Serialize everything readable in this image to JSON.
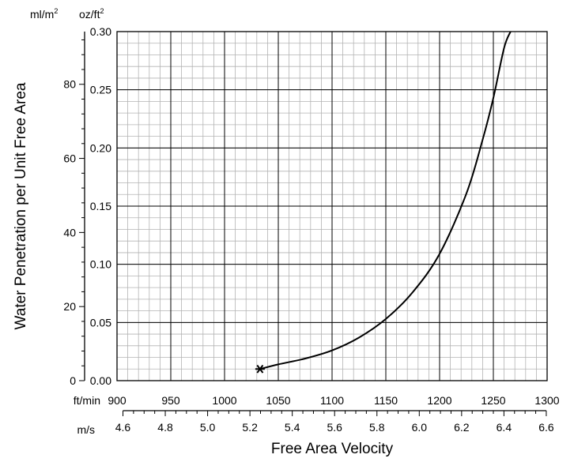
{
  "chart_data": {
    "type": "line",
    "xlabel": "Free Area Velocity",
    "ylabel": "Water Penetration per Unit Free Area",
    "x_units": {
      "primary": "ft/min",
      "secondary": "m/s"
    },
    "y_units": {
      "primary": {
        "base": "oz/ft",
        "exp": "2"
      },
      "secondary": {
        "base": "ml/m",
        "exp": "2"
      }
    },
    "xlim": [
      900,
      1300
    ],
    "ylim": [
      0,
      0.3
    ],
    "x_ticks": [
      900,
      950,
      1000,
      1050,
      1100,
      1150,
      1200,
      1250,
      1300
    ],
    "y_ticks": [
      0.0,
      0.05,
      0.1,
      0.15,
      0.2,
      0.25,
      0.3
    ],
    "y_tick_labels": [
      "0.00",
      "0.05",
      "0.10",
      "0.15",
      "0.20",
      "0.25",
      "0.30"
    ],
    "secondary_x_ticks": [
      4.6,
      4.8,
      5.0,
      5.2,
      5.4,
      5.6,
      5.8,
      6.0,
      6.2,
      6.4,
      6.6
    ],
    "secondary_x_tick_labels": [
      "4.6",
      "4.8",
      "5.0",
      "5.2",
      "5.4",
      "5.6",
      "5.8",
      "6.0",
      "6.2",
      "6.4",
      "6.6"
    ],
    "secondary_y_ticks": [
      0,
      20,
      40,
      60,
      80
    ],
    "grid": true,
    "series": [
      {
        "x": [
          1033,
          1050,
          1075,
          1100,
          1125,
          1150,
          1175,
          1200,
          1225,
          1240,
          1250,
          1260,
          1266
        ],
        "y": [
          0.01,
          0.014,
          0.019,
          0.026,
          0.037,
          0.053,
          0.076,
          0.109,
          0.161,
          0.207,
          0.243,
          0.286,
          0.3
        ],
        "color": "#000000"
      }
    ],
    "start_marker": {
      "x": 1033,
      "y": 0.01
    }
  }
}
